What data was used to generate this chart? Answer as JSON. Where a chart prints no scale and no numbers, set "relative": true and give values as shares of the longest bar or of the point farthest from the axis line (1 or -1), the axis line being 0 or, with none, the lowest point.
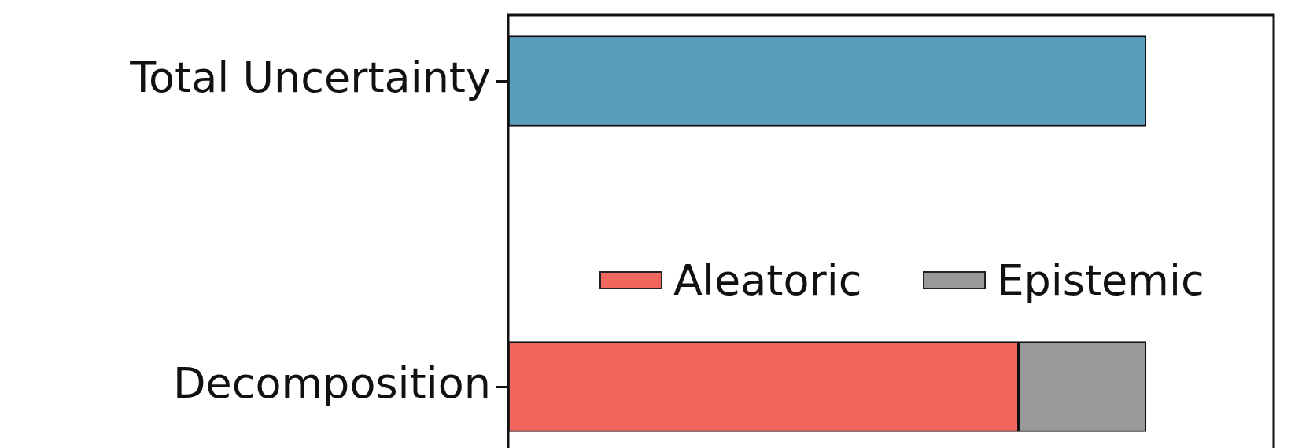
{
  "chart_data": {
    "type": "bar",
    "orientation": "horizontal",
    "stacked": true,
    "relative": true,
    "categories": [
      "Total Uncertainty",
      "Decomposition"
    ],
    "series": [
      {
        "color": "#5a9ebe",
        "values": [
          1,
          null
        ]
      },
      {
        "name": "Aleatoric",
        "color": "#f2675d",
        "values": [
          null,
          0.8
        ]
      },
      {
        "name": "Epistemic",
        "color": "#999999",
        "values": [
          null,
          0.2
        ]
      }
    ],
    "legend": "right"
  }
}
